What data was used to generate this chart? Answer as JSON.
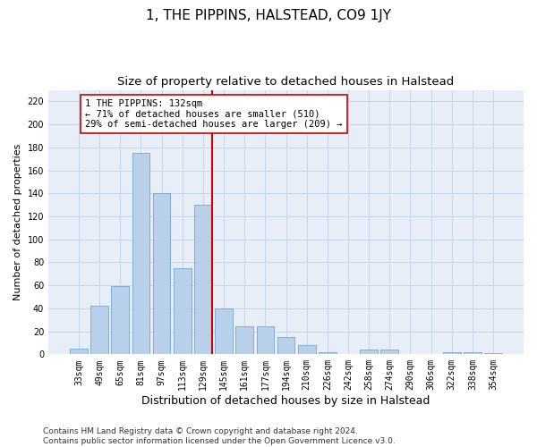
{
  "title": "1, THE PIPPINS, HALSTEAD, CO9 1JY",
  "subtitle": "Size of property relative to detached houses in Halstead",
  "xlabel": "Distribution of detached houses by size in Halstead",
  "ylabel": "Number of detached properties",
  "categories": [
    "33sqm",
    "49sqm",
    "65sqm",
    "81sqm",
    "97sqm",
    "113sqm",
    "129sqm",
    "145sqm",
    "161sqm",
    "177sqm",
    "194sqm",
    "210sqm",
    "226sqm",
    "242sqm",
    "258sqm",
    "274sqm",
    "290sqm",
    "306sqm",
    "322sqm",
    "338sqm",
    "354sqm"
  ],
  "values": [
    5,
    42,
    59,
    175,
    140,
    75,
    130,
    40,
    24,
    24,
    15,
    8,
    2,
    0,
    4,
    4,
    0,
    0,
    2,
    2,
    1
  ],
  "bar_color": "#b8d0ea",
  "bar_edge_color": "#6fa8d4",
  "grid_color": "#c8d4e8",
  "background_color": "#e8eef8",
  "annotation_line1": "1 THE PIPPINS: 132sqm",
  "annotation_line2": "← 71% of detached houses are smaller (510)",
  "annotation_line3": "29% of semi-detached houses are larger (209) →",
  "vline_color": "#cc0000",
  "ylim": [
    0,
    230
  ],
  "yticks": [
    0,
    20,
    40,
    60,
    80,
    100,
    120,
    140,
    160,
    180,
    200,
    220
  ],
  "footer": "Contains HM Land Registry data © Crown copyright and database right 2024.\nContains public sector information licensed under the Open Government Licence v3.0.",
  "title_fontsize": 11,
  "subtitle_fontsize": 9.5,
  "xlabel_fontsize": 9,
  "ylabel_fontsize": 8,
  "tick_fontsize": 7,
  "annotation_fontsize": 7.5,
  "footer_fontsize": 6.5
}
